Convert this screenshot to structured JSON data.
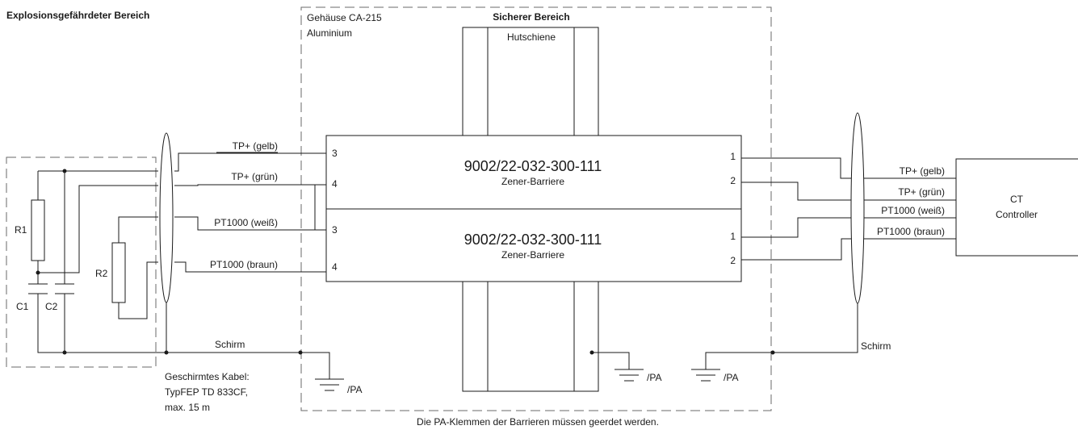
{
  "zones": {
    "hazardous_area": "Explosionsgefährdeter Bereich",
    "safe_area": "Sicherer Bereich",
    "housing_line1": "Gehäuse CA-215",
    "housing_line2": "Aluminium",
    "din_rail": "Hutschiene"
  },
  "barriers": [
    {
      "part_number": "9002/22-032-300-111",
      "type": "Zener-Barriere",
      "left_terminals": [
        "3",
        "4"
      ],
      "right_terminals": [
        "1",
        "2"
      ]
    },
    {
      "part_number": "9002/22-032-300-111",
      "type": "Zener-Barriere",
      "left_terminals": [
        "3",
        "4"
      ],
      "right_terminals": [
        "1",
        "2"
      ]
    }
  ],
  "wires_left": [
    "TP+ (gelb)",
    "TP+ (grün)",
    "PT1000 (weiß)",
    "PT1000 (braun)"
  ],
  "wires_right": [
    "TP+ (gelb)",
    "TP+ (grün)",
    "PT1000 (weiß)",
    "PT1000 (braun)"
  ],
  "components": {
    "r1": "R1",
    "r2": "R2",
    "c1": "C1",
    "c2": "C2"
  },
  "controller": {
    "line1": "CT",
    "line2": "Controller"
  },
  "shield": {
    "left_label": "Schirm",
    "right_label": "Schirm"
  },
  "ground_labels": [
    "/PA",
    "/PA",
    "/PA"
  ],
  "cable_note": {
    "line1": "Geschirmtes Kabel:",
    "line2": "TypFEP TD 833CF,",
    "line3": "max. 15 m"
  },
  "footer_note": "Die PA-Klemmen der Barrieren müssen geerdet werden."
}
